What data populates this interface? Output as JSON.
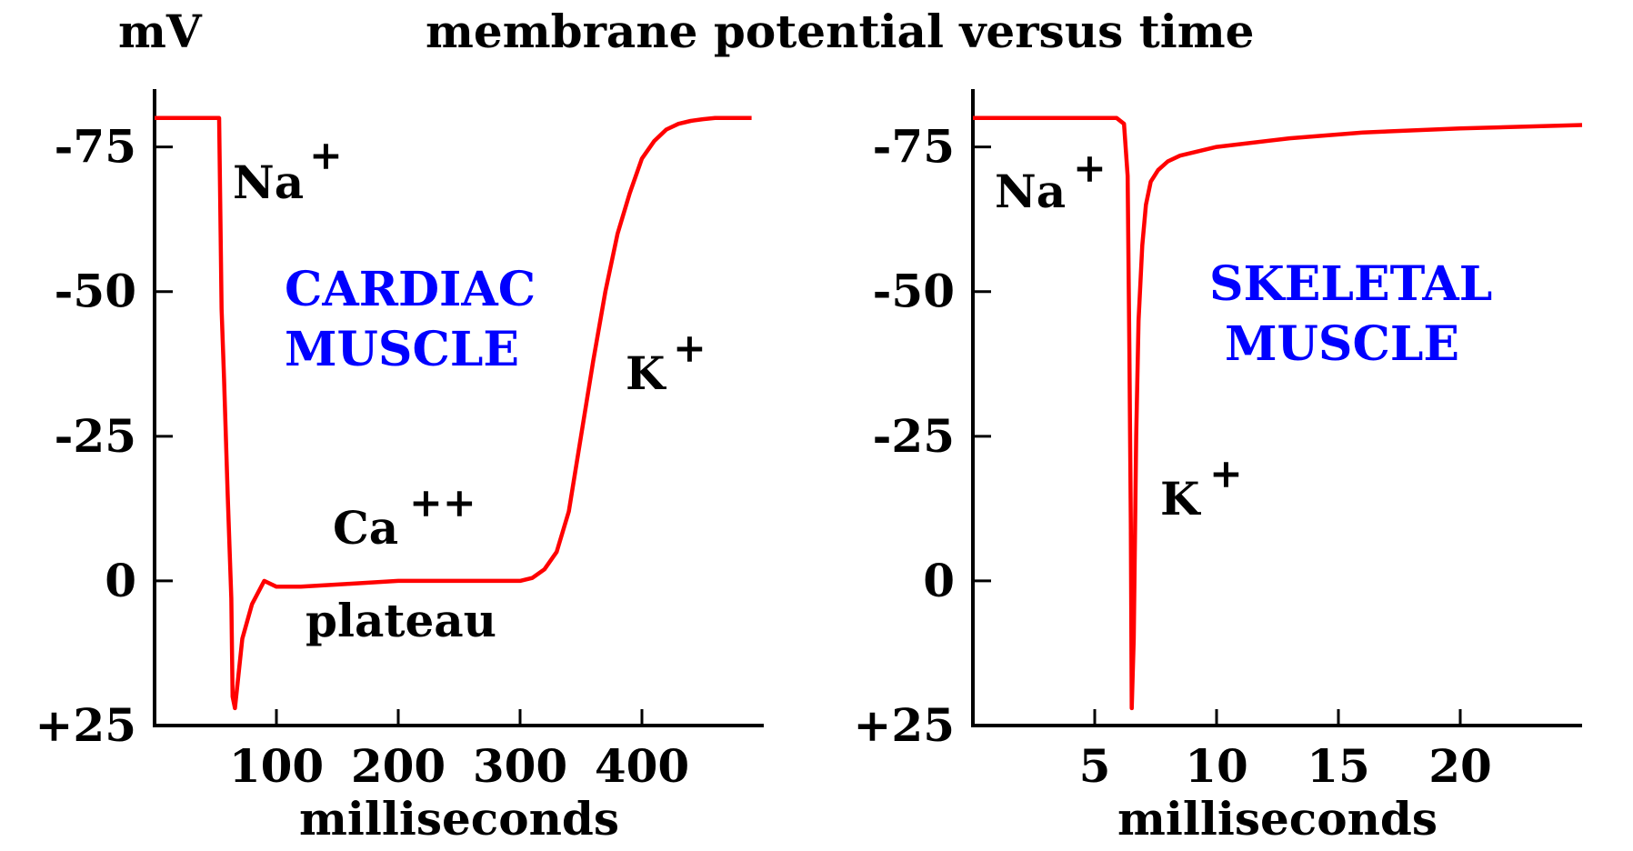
{
  "title": "membrane potential versus time",
  "y_unit": "mV",
  "colors": {
    "trace": "#ff0000",
    "axes": "#000000",
    "muscle_label": "#0000ff"
  },
  "chart_data": [
    {
      "type": "line",
      "id": "cardiac",
      "xlabel": "milliseconds",
      "ylabel": "mV",
      "xlim": [
        0,
        500
      ],
      "ylim": [
        25,
        -85
      ],
      "y_axis_inverted": true,
      "x_ticks": [
        "100",
        "200",
        "300",
        "400"
      ],
      "x_tick_values": [
        100,
        200,
        300,
        400
      ],
      "y_ticks": [
        "-75",
        "-50",
        "-25",
        "0",
        "+25"
      ],
      "y_tick_values": [
        -75,
        -50,
        -25,
        0,
        25
      ],
      "labels": {
        "muscle_line1": "CARDIAC",
        "muscle_line2": "MUSCLE",
        "na": "Na",
        "na_sup": "+",
        "ca": "Ca",
        "ca_sup": "++",
        "k": "K",
        "k_sup": "+",
        "plateau": "plateau"
      },
      "series": [
        {
          "x": [
            0,
            53,
            54,
            55,
            57,
            60,
            63,
            64,
            66,
            72,
            80,
            90,
            100,
            120,
            160,
            200,
            250,
            300,
            310,
            320,
            330,
            340,
            350,
            360,
            370,
            380,
            390,
            400,
            410,
            420,
            430,
            440,
            450,
            460,
            480,
            490
          ],
          "y": [
            -80,
            -80,
            -63,
            -47,
            -35,
            -15,
            3,
            20,
            22,
            10,
            4,
            0,
            1,
            1,
            0.5,
            0,
            0,
            0,
            -0.5,
            -2,
            -5,
            -12,
            -25,
            -38,
            -50,
            -60,
            -67,
            -73,
            -76,
            -78,
            -79,
            -79.5,
            -79.8,
            -80,
            -80,
            -80
          ]
        }
      ]
    },
    {
      "type": "line",
      "id": "skeletal",
      "xlabel": "milliseconds",
      "ylabel": "mV",
      "xlim": [
        0,
        25
      ],
      "ylim": [
        25,
        -85
      ],
      "y_axis_inverted": true,
      "x_ticks": [
        "5",
        "10",
        "15",
        "20"
      ],
      "x_tick_values": [
        5,
        10,
        15,
        20
      ],
      "y_ticks": [
        "-75",
        "-50",
        "-25",
        "0",
        "+25"
      ],
      "y_tick_values": [
        -75,
        -50,
        -25,
        0,
        25
      ],
      "labels": {
        "muscle_line1": "SKELETAL",
        "muscle_line2": "MUSCLE",
        "na": "Na",
        "na_sup": "+",
        "k": "K",
        "k_sup": "+"
      },
      "series": [
        {
          "x": [
            0,
            5.9,
            6.2,
            6.35,
            6.42,
            6.48,
            6.52,
            6.6,
            6.7,
            6.8,
            6.95,
            7.1,
            7.3,
            7.6,
            8.0,
            8.5,
            10,
            13,
            16,
            20,
            25
          ],
          "y": [
            -80,
            -80,
            -79,
            -70,
            -40,
            -10,
            22,
            10,
            -25,
            -45,
            -58,
            -65,
            -69,
            -71,
            -72.5,
            -73.5,
            -75,
            -76.5,
            -77.5,
            -78.2,
            -78.8
          ]
        }
      ]
    }
  ]
}
